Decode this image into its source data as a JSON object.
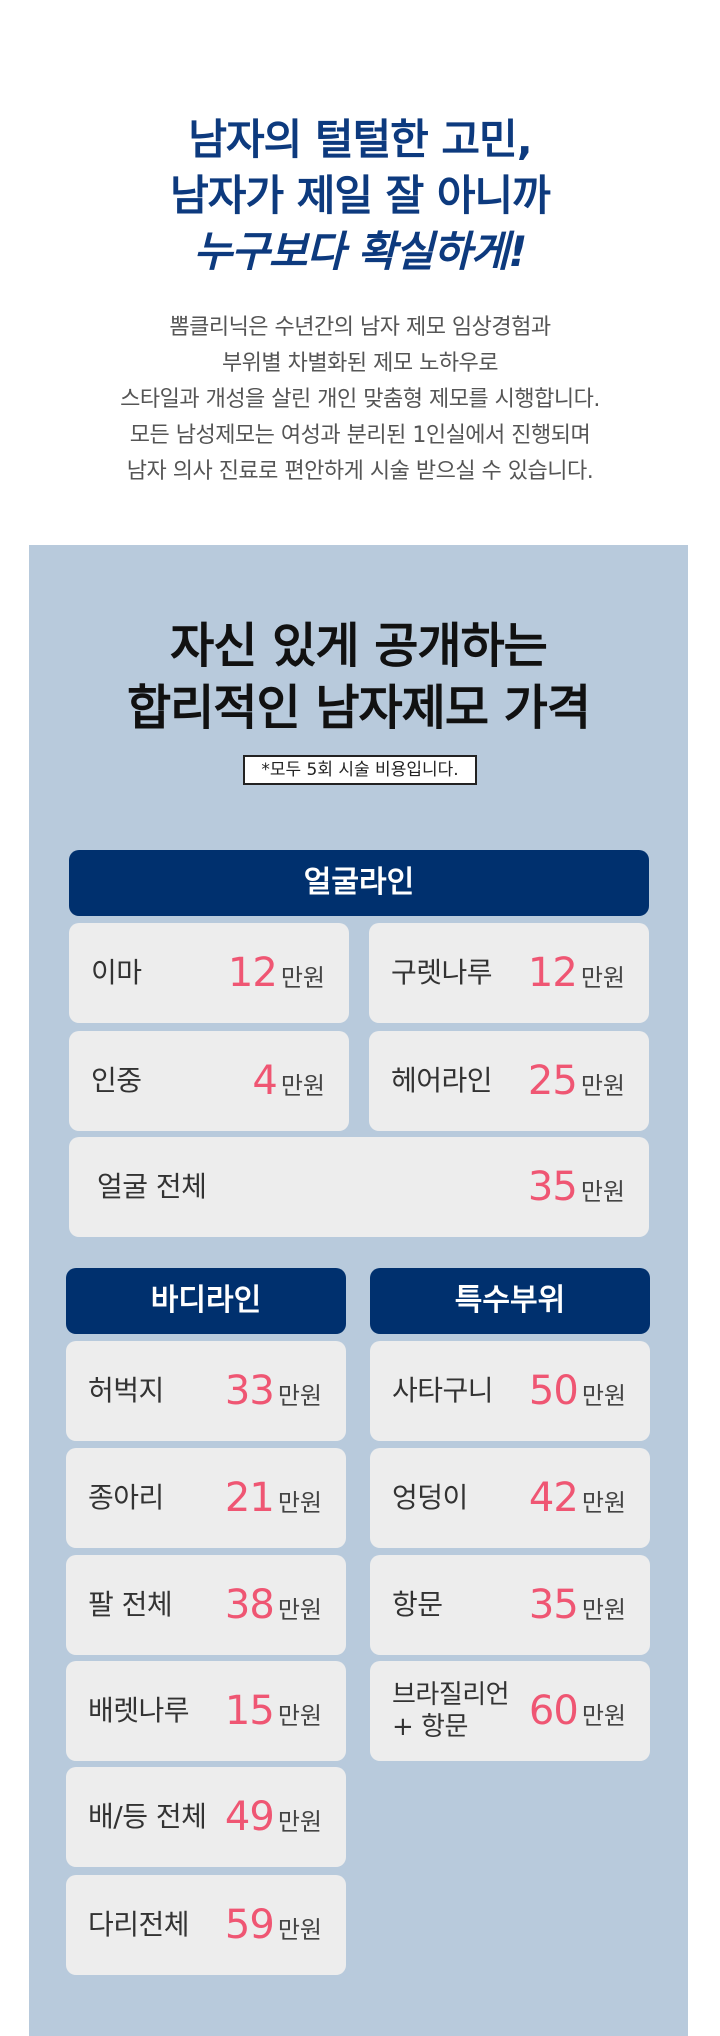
{
  "hero": {
    "headline": [
      "남자의 털털한 고민,",
      "남자가 제일 잘 아니까",
      "누구보다 확실하게!"
    ],
    "intro": [
      "뽐클리닉은 수년간의 남자 제모 임상경험과",
      "부위별 차별화된 제모 노하우로",
      "스타일과 개성을 살린 개인 맞춤형 제모를 시행합니다.",
      "모든 남성제모는 여성과 분리된 1인실에서 진행되며",
      "남자 의사 진료로 편안하게 시술 받으실 수 있습니다."
    ]
  },
  "pricing": {
    "title": [
      "자신 있게 공개하는",
      "합리적인 남자제모 가격"
    ],
    "note": "*모두 5회 시술 비용입니다.",
    "unit": "만원",
    "face": {
      "label": "얼굴라인",
      "items": [
        {
          "name": "이마",
          "price": "12"
        },
        {
          "name": "구렛나루",
          "price": "12"
        },
        {
          "name": "인중",
          "price": "4"
        },
        {
          "name": "헤어라인",
          "price": "25"
        },
        {
          "name": "얼굴 전체",
          "price": "35"
        }
      ]
    },
    "body": {
      "label": "바디라인",
      "items": [
        {
          "name": "허벅지",
          "price": "33"
        },
        {
          "name": "종아리",
          "price": "21"
        },
        {
          "name": "팔 전체",
          "price": "38"
        },
        {
          "name": "배렛나루",
          "price": "15"
        },
        {
          "name": "배/등 전체",
          "price": "49"
        },
        {
          "name": "다리전체",
          "price": "59"
        }
      ]
    },
    "special": {
      "label": "특수부위",
      "items": [
        {
          "name": "사타구니",
          "price": "50"
        },
        {
          "name": "엉덩이",
          "price": "42"
        },
        {
          "name": "항문",
          "price": "35"
        },
        {
          "name": "브라질리언",
          "name2": "+ 항문",
          "price": "60"
        }
      ]
    }
  },
  "colors": {
    "navy": "#00306e",
    "headline": "#0d3a7e",
    "price": "#ef5673",
    "panel": "#b8cadc",
    "card": "#ededed"
  }
}
